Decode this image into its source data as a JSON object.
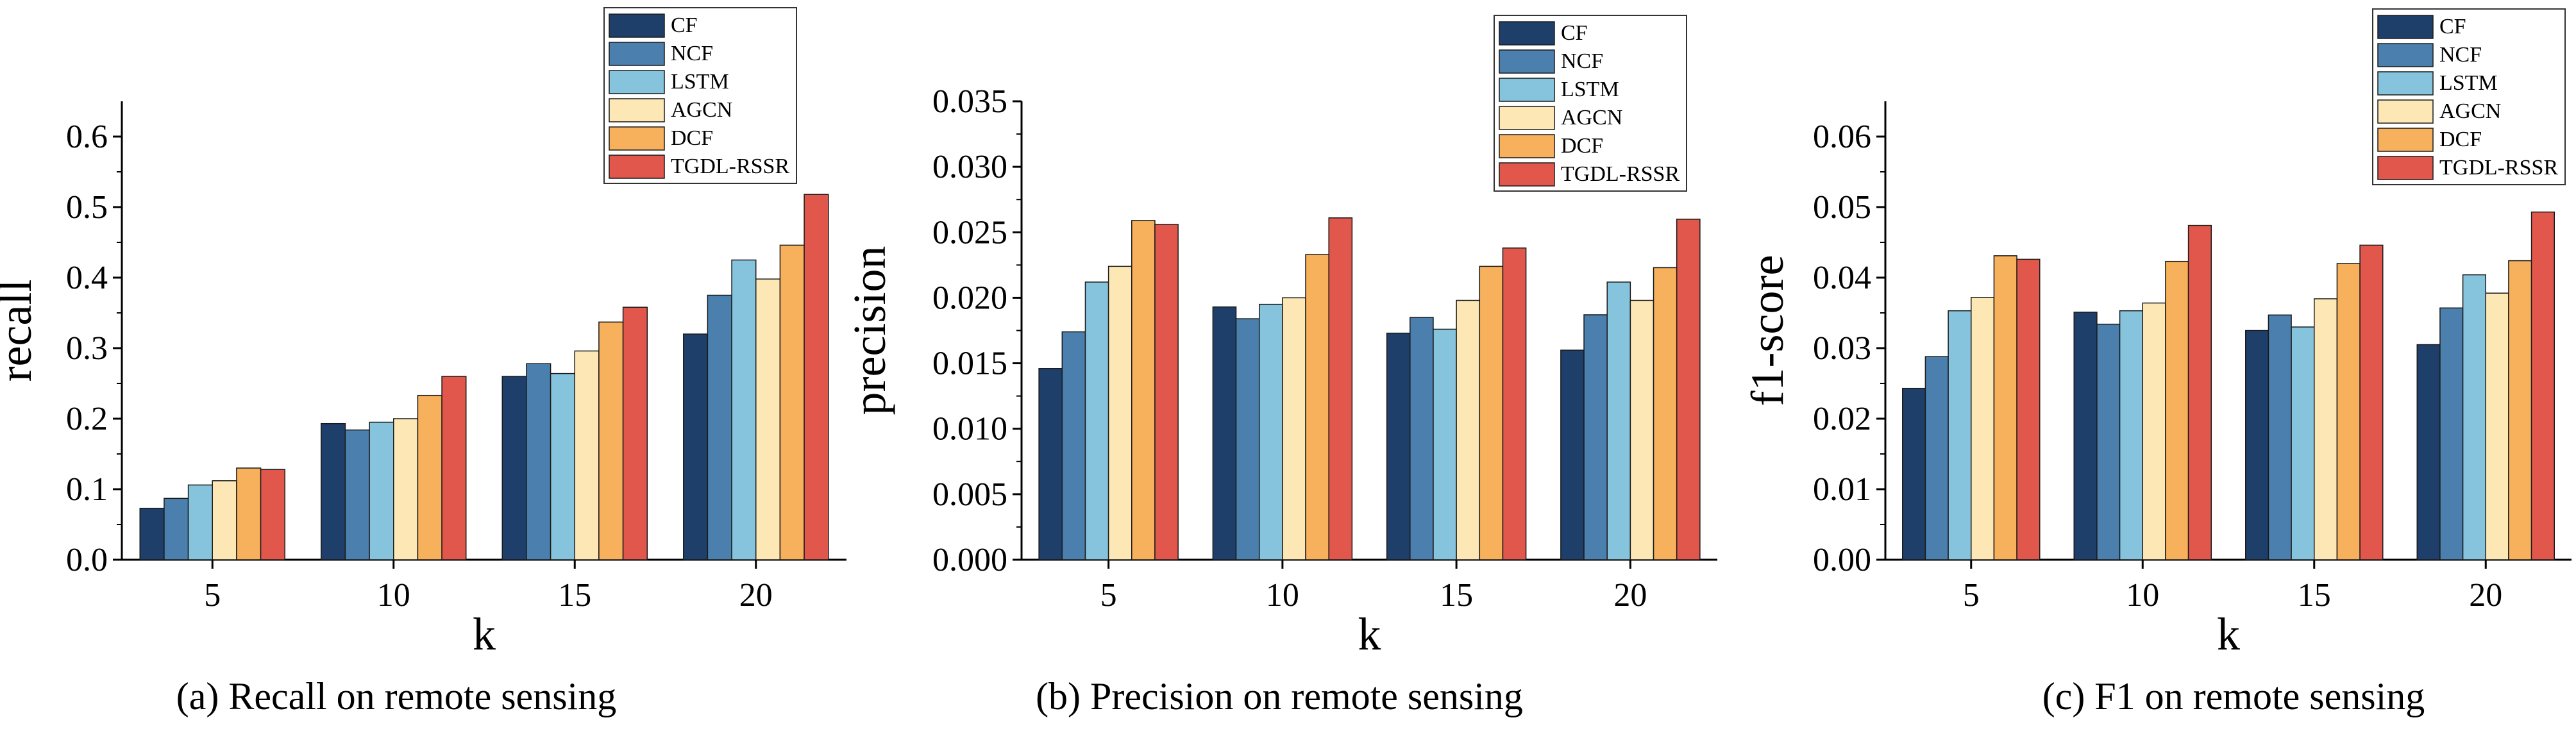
{
  "colors": {
    "CF": "#1f3f6b",
    "NCF": "#4a7fae",
    "LSTM": "#86c3dc",
    "AGCN": "#fde7b5",
    "DCF": "#f7b05b",
    "TGDL-RSSR": "#e2574c"
  },
  "chart_data": [
    {
      "type": "bar",
      "caption": "(a)  Recall on remote sensing",
      "xlabel": "k",
      "ylabel": "recall",
      "categories": [
        "5",
        "10",
        "15",
        "20"
      ],
      "ylim": [
        0,
        0.65
      ],
      "yticks": [
        "0.0",
        "0.1",
        "0.2",
        "0.3",
        "0.4",
        "0.5",
        "0.6"
      ],
      "ytick_values": [
        0,
        0.1,
        0.2,
        0.3,
        0.4,
        0.5,
        0.6
      ],
      "legend_position": "top-right",
      "series": [
        {
          "name": "CF",
          "values": [
            0.073,
            0.193,
            0.26,
            0.32
          ]
        },
        {
          "name": "NCF",
          "values": [
            0.087,
            0.184,
            0.278,
            0.375
          ]
        },
        {
          "name": "LSTM",
          "values": [
            0.106,
            0.195,
            0.264,
            0.425
          ]
        },
        {
          "name": "AGCN",
          "values": [
            0.112,
            0.2,
            0.296,
            0.398
          ]
        },
        {
          "name": "DCF",
          "values": [
            0.13,
            0.233,
            0.337,
            0.446
          ]
        },
        {
          "name": "TGDL-RSSR",
          "values": [
            0.128,
            0.26,
            0.358,
            0.518
          ]
        }
      ]
    },
    {
      "type": "bar",
      "caption": "(b)  Precision on remote sensing",
      "xlabel": "k",
      "ylabel": "precision",
      "categories": [
        "5",
        "10",
        "15",
        "20"
      ],
      "ylim": [
        0,
        0.035
      ],
      "yticks": [
        "0.000",
        "0.005",
        "0.010",
        "0.015",
        "0.020",
        "0.025",
        "0.030",
        "0.035"
      ],
      "ytick_values": [
        0,
        0.005,
        0.01,
        0.015,
        0.02,
        0.025,
        0.03,
        0.035
      ],
      "legend_position": "top-right",
      "series": [
        {
          "name": "CF",
          "values": [
            0.0146,
            0.0193,
            0.0173,
            0.016
          ]
        },
        {
          "name": "NCF",
          "values": [
            0.0174,
            0.0184,
            0.0185,
            0.0187
          ]
        },
        {
          "name": "LSTM",
          "values": [
            0.0212,
            0.0195,
            0.0176,
            0.0212
          ]
        },
        {
          "name": "AGCN",
          "values": [
            0.0224,
            0.02,
            0.0198,
            0.0198
          ]
        },
        {
          "name": "DCF",
          "values": [
            0.0259,
            0.0233,
            0.0224,
            0.0223
          ]
        },
        {
          "name": "TGDL-RSSR",
          "values": [
            0.0256,
            0.0261,
            0.0238,
            0.026
          ]
        }
      ]
    },
    {
      "type": "bar",
      "caption": "(c)  F1 on remote sensing",
      "xlabel": "k",
      "ylabel": "f1-score",
      "categories": [
        "5",
        "10",
        "15",
        "20"
      ],
      "ylim": [
        0,
        0.065
      ],
      "yticks": [
        "0.00",
        "0.01",
        "0.02",
        "0.03",
        "0.04",
        "0.05",
        "0.06"
      ],
      "ytick_values": [
        0,
        0.01,
        0.02,
        0.03,
        0.04,
        0.05,
        0.06
      ],
      "legend_position": "top-right",
      "series": [
        {
          "name": "CF",
          "values": [
            0.0243,
            0.0351,
            0.0325,
            0.0305
          ]
        },
        {
          "name": "NCF",
          "values": [
            0.0288,
            0.0334,
            0.0347,
            0.0357
          ]
        },
        {
          "name": "LSTM",
          "values": [
            0.0353,
            0.0353,
            0.033,
            0.0404
          ]
        },
        {
          "name": "AGCN",
          "values": [
            0.0372,
            0.0364,
            0.037,
            0.0378
          ]
        },
        {
          "name": "DCF",
          "values": [
            0.0431,
            0.0423,
            0.042,
            0.0424
          ]
        },
        {
          "name": "TGDL-RSSR",
          "values": [
            0.0426,
            0.0474,
            0.0446,
            0.0493
          ]
        }
      ]
    }
  ]
}
